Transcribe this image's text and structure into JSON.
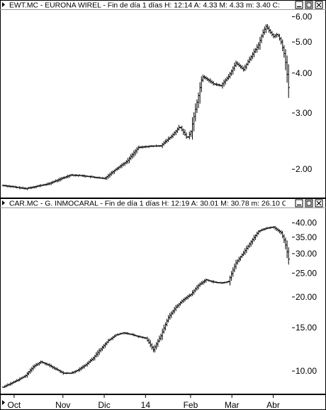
{
  "chart_data": [
    {
      "type": "line",
      "chart_style": "ohlc-bars",
      "header": "EWT.MC - EURONA WIREL - Fin de día 1 días  H: 12:14  A: 4.33  M: 4.33  m: 3.40  C:",
      "y_scale": "log",
      "ylim": [
        1.7,
        6.3
      ],
      "yticks": [
        "6.00",
        "5.00",
        "4.00",
        "3.00",
        "2.00"
      ],
      "ytick_values": [
        6.0,
        5.0,
        4.0,
        3.0,
        2.0
      ],
      "series": [
        {
          "x": [
            0,
            15,
            30,
            45,
            60,
            75,
            90,
            105,
            120,
            135,
            150,
            165,
            180,
            195,
            210,
            225,
            235,
            245,
            250,
            255,
            260,
            265,
            270,
            280,
            290,
            300,
            310,
            320,
            330,
            340,
            345,
            350,
            355,
            360,
            365,
            370,
            375,
            380
          ],
          "values": [
            1.78,
            1.76,
            1.74,
            1.77,
            1.8,
            1.86,
            1.92,
            1.91,
            1.89,
            1.87,
            2.0,
            2.12,
            2.34,
            2.36,
            2.37,
            2.55,
            2.72,
            2.5,
            2.62,
            3.0,
            3.4,
            3.9,
            3.85,
            3.7,
            3.65,
            3.9,
            4.3,
            4.1,
            4.5,
            4.9,
            5.3,
            5.6,
            5.4,
            5.2,
            5.3,
            5.0,
            4.5,
            3.6
          ]
        }
      ]
    },
    {
      "type": "line",
      "chart_style": "ohlc-bars",
      "header": "CAR.MC - G. INMOCARAL - Fin de día 1 días  H: 12:19  A: 30.01  M: 30.78  m: 26.10  C:",
      "y_scale": "log",
      "ylim": [
        8.2,
        45
      ],
      "yticks": [
        "40.00",
        "35.00",
        "30.00",
        "25.00",
        "20.00",
        "15.00",
        "10.00"
      ],
      "ytick_values": [
        40,
        35,
        30,
        25,
        20,
        15,
        10
      ],
      "series": [
        {
          "x": [
            0,
            10,
            20,
            30,
            40,
            50,
            60,
            70,
            80,
            90,
            100,
            110,
            120,
            130,
            140,
            150,
            160,
            170,
            180,
            190,
            200,
            210,
            220,
            230,
            240,
            250,
            260,
            270,
            280,
            290,
            300,
            310,
            320,
            330,
            340,
            350,
            360,
            370,
            375,
            380
          ],
          "values": [
            8.6,
            8.9,
            9.2,
            9.6,
            10.4,
            10.9,
            10.6,
            10.2,
            9.8,
            9.8,
            10.1,
            10.6,
            11.3,
            12.3,
            13.3,
            14.0,
            14.3,
            14.1,
            13.8,
            13.6,
            12.2,
            13.9,
            16.5,
            18.2,
            19.5,
            20.5,
            22.3,
            23.5,
            23.0,
            22.8,
            23.1,
            27.5,
            30.2,
            33.5,
            37.0,
            38.0,
            38.5,
            36.5,
            33.5,
            28.5
          ]
        }
      ]
    }
  ],
  "x_axis": {
    "labels": [
      "Oct",
      "Nov",
      "Dic",
      "14",
      "Feb",
      "Mar",
      "Abr"
    ],
    "positions": [
      15,
      80,
      135,
      190,
      250,
      305,
      360
    ],
    "range": [
      0,
      385
    ]
  },
  "colors": {
    "bars": "#000000",
    "background": "#ffffff",
    "header_text": "#000000",
    "grid": "#000000"
  },
  "panel_icons": [
    "restore-icon",
    "maximize-icon",
    "close-icon"
  ]
}
